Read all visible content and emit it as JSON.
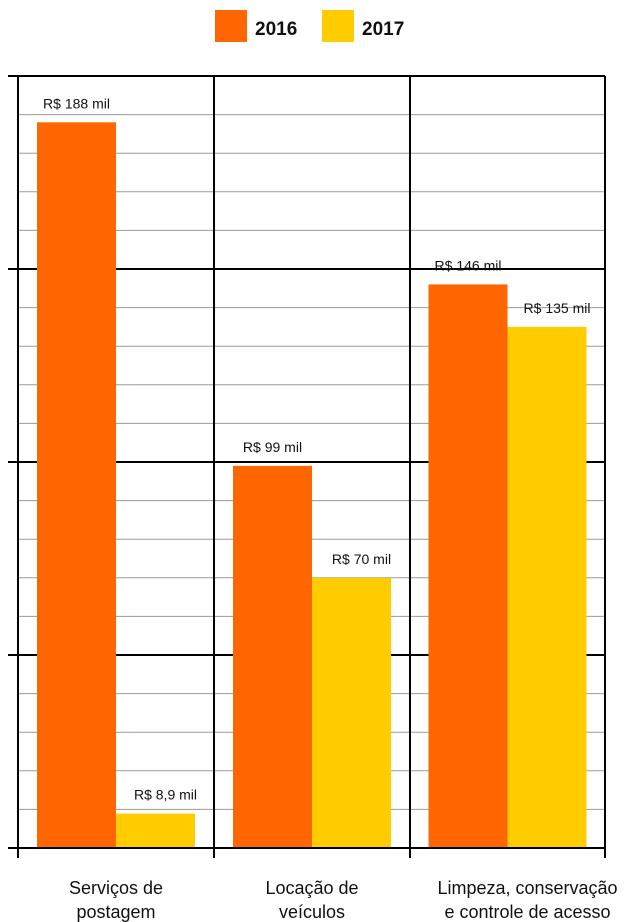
{
  "chart_data": {
    "type": "bar",
    "categories": [
      [
        "Serviços de",
        "postagem"
      ],
      [
        "Locação de",
        "veículos"
      ],
      [
        "Limpeza, conservação",
        "e controle de acesso"
      ]
    ],
    "series": [
      {
        "name": "2016",
        "color": "#FF6600",
        "values": [
          188,
          99,
          146
        ],
        "labels": [
          "R$ 188 mil",
          "R$ 99 mil",
          "R$ 146 mil"
        ]
      },
      {
        "name": "2017",
        "color": "#FFCC00",
        "values": [
          8.9,
          70,
          135
        ],
        "labels": [
          "R$ 8,9 mil",
          "R$ 70 mil",
          "R$ 135 mil"
        ]
      }
    ],
    "ylim": [
      0,
      200
    ],
    "grid": true,
    "legend": "top-center"
  }
}
